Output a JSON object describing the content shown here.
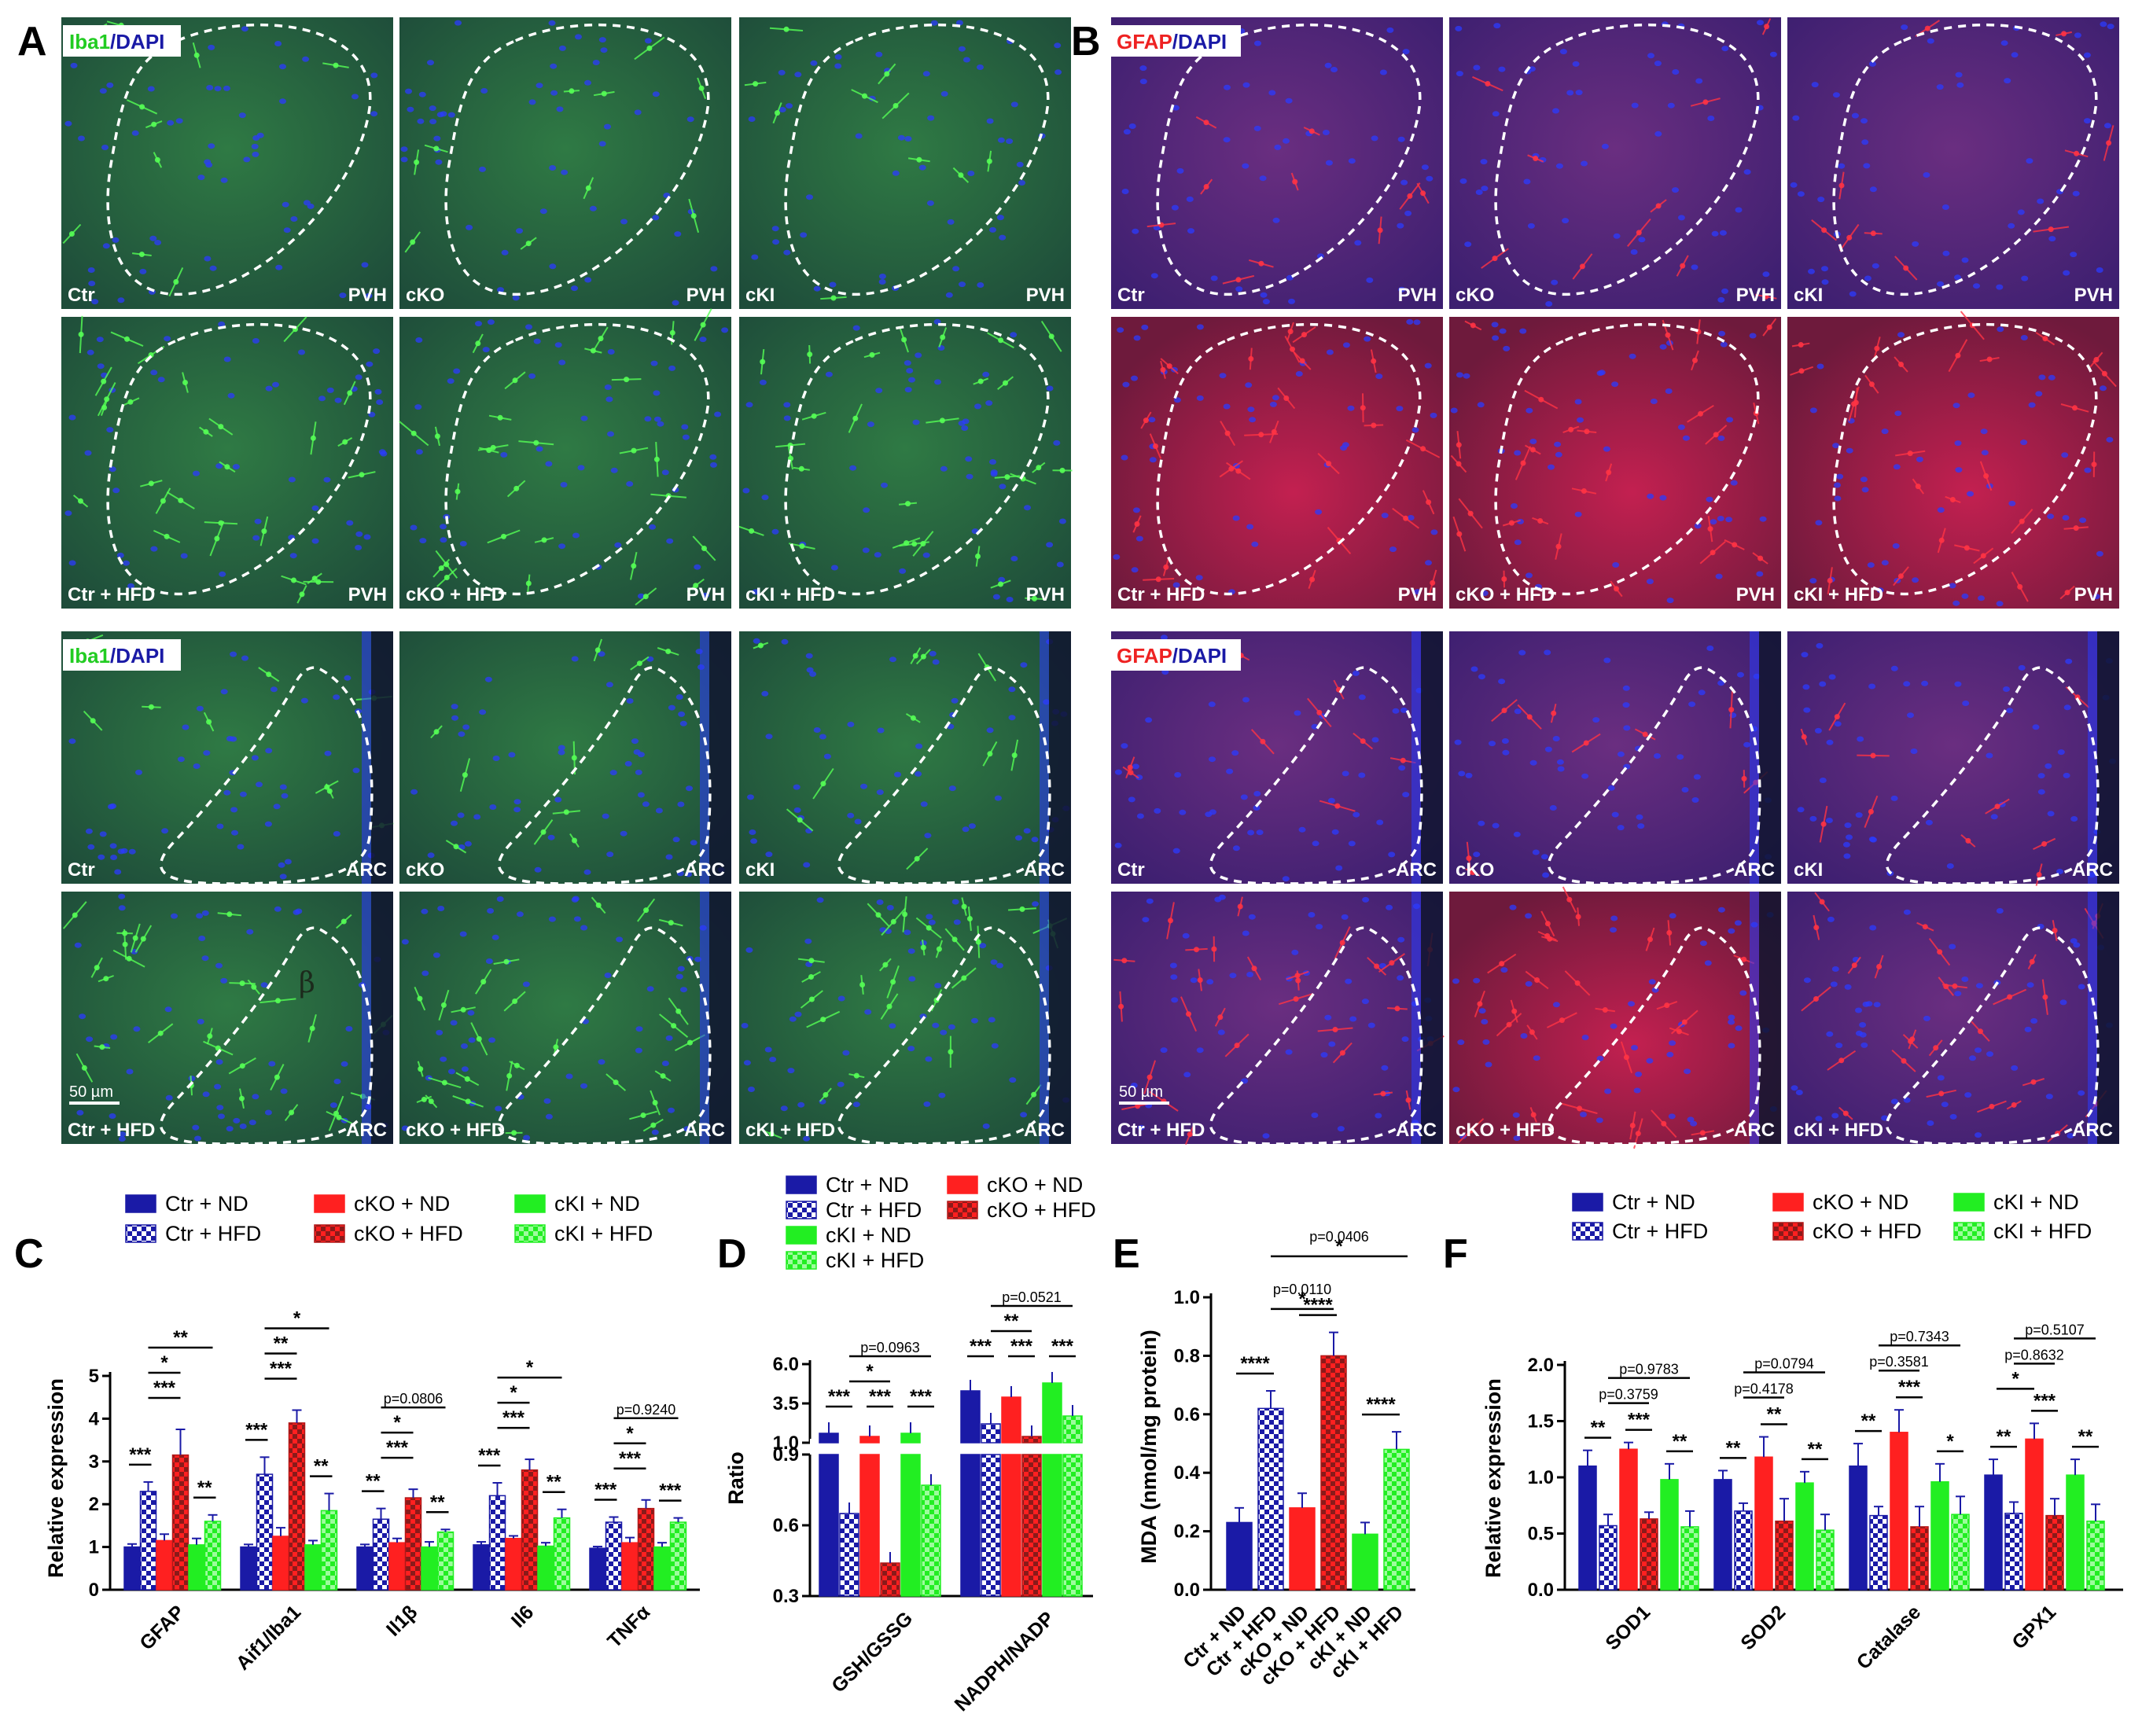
{
  "figure": {
    "panels": {
      "A": {
        "letter": "A",
        "stain_green": "Iba1",
        "stain_sep": "/",
        "stain_blue": "DAPI"
      },
      "B": {
        "letter": "B",
        "stain_red": "GFAP",
        "stain_sep": "/",
        "stain_blue": "DAPI"
      },
      "C": {
        "letter": "C"
      },
      "D": {
        "letter": "D"
      },
      "E": {
        "letter": "E"
      },
      "F": {
        "letter": "F"
      }
    },
    "groups": [
      "Ctr",
      "cKO",
      "cKI"
    ],
    "hfd_groups": [
      "Ctr + HFD",
      "cKO + HFD",
      "cKI + HFD"
    ],
    "regions": {
      "pvh": "PVH",
      "arc": "ARC"
    },
    "scale_bar": "50 µm",
    "arc_symbol": "β",
    "colors": {
      "ctr": "#1a1aa6",
      "cko": "#ff2020",
      "cki": "#22ee22",
      "iba1": "#33ff33",
      "gfap": "#ff2222",
      "dapi": "#2233ff",
      "green_tissue": "#2f6a3a",
      "red_tissue": "#5a2a6e"
    }
  },
  "chart_data": [
    {
      "id": "C",
      "type": "bar",
      "ylabel": "Relative expression",
      "ylim": [
        0,
        5
      ],
      "yticks": [
        "0",
        "1",
        "2",
        "3",
        "4",
        "5"
      ],
      "legend": [
        "Ctr + ND",
        "Ctr + HFD",
        "cKO + ND",
        "cKO + HFD",
        "cKI + ND",
        "cKI + HFD"
      ],
      "categories": [
        "GFAP",
        "Aif1/Iba1",
        "Il1β",
        "Il6",
        "TNFα"
      ],
      "series": [
        {
          "name": "Ctr + ND",
          "values": [
            1.0,
            1.0,
            1.0,
            1.05,
            0.97
          ],
          "errors": [
            0.07,
            0.06,
            0.06,
            0.07,
            0.04
          ]
        },
        {
          "name": "Ctr + HFD",
          "values": [
            2.3,
            2.7,
            1.65,
            2.2,
            1.58
          ],
          "errors": [
            0.22,
            0.4,
            0.25,
            0.3,
            0.12
          ]
        },
        {
          "name": "cKO + ND",
          "values": [
            1.15,
            1.25,
            1.1,
            1.2,
            1.1
          ],
          "errors": [
            0.15,
            0.2,
            0.1,
            0.06,
            0.12
          ]
        },
        {
          "name": "cKO + HFD",
          "values": [
            3.15,
            3.9,
            2.15,
            2.8,
            1.9
          ],
          "errors": [
            0.6,
            0.3,
            0.2,
            0.25,
            0.2
          ]
        },
        {
          "name": "cKI + ND",
          "values": [
            1.05,
            1.05,
            1.0,
            1.02,
            1.0
          ],
          "errors": [
            0.15,
            0.1,
            0.12,
            0.08,
            0.1
          ]
        },
        {
          "name": "cKI + HFD",
          "values": [
            1.6,
            1.85,
            1.35,
            1.68,
            1.58
          ],
          "errors": [
            0.15,
            0.4,
            0.06,
            0.2,
            0.1
          ]
        }
      ],
      "annotations": [
        {
          "category": "GFAP",
          "labels": [
            "***",
            "**",
            "**",
            "*",
            "***"
          ]
        },
        {
          "category": "Aif1/Iba1",
          "labels": [
            "***",
            "**",
            "*",
            "**",
            "***"
          ]
        },
        {
          "category": "Il1β",
          "labels": [
            "**",
            "**",
            "p=0.0806",
            "*",
            "***"
          ]
        },
        {
          "category": "Il6",
          "labels": [
            "***",
            "**",
            "*",
            "*",
            "***"
          ]
        },
        {
          "category": "TNFα",
          "labels": [
            "***",
            "***",
            "p=0.9240",
            "*",
            "***"
          ]
        }
      ]
    },
    {
      "id": "D",
      "type": "bar",
      "ylabel": "Ratio",
      "broken_axis": true,
      "upper_ylim": [
        1.0,
        6.0
      ],
      "lower_ylim": [
        0.3,
        0.9
      ],
      "yticks": [
        "6.0",
        "3.5",
        "1.0",
        "0.9",
        "0.6",
        "0.3"
      ],
      "legend": [
        "Ctr + ND",
        "Ctr + HFD",
        "cKI + ND",
        "cKI + HFD",
        "cKO + ND",
        "cKO + HFD"
      ],
      "categories": [
        "GSH/GSSG",
        "NADPH/NADP"
      ],
      "series": [
        {
          "name": "Ctr + ND",
          "values": [
            1.6,
            4.3
          ]
        },
        {
          "name": "Ctr + HFD",
          "values": [
            0.65,
            2.2
          ]
        },
        {
          "name": "cKO + ND",
          "values": [
            1.4,
            3.9
          ]
        },
        {
          "name": "cKO + HFD",
          "values": [
            0.44,
            1.4
          ]
        },
        {
          "name": "cKI + ND",
          "values": [
            1.6,
            4.8
          ]
        },
        {
          "name": "cKI + HFD",
          "values": [
            0.77,
            2.7
          ]
        }
      ],
      "annotations": [
        {
          "category": "GSH/GSSG",
          "labels": [
            "***",
            "***",
            "***",
            "*",
            "p=0.0963"
          ]
        },
        {
          "category": "NADPH/NADP",
          "labels": [
            "***",
            "***",
            "***",
            "**",
            "p=0.0521"
          ]
        }
      ]
    },
    {
      "id": "E",
      "type": "bar",
      "ylabel": "MDA (nmol/mg protein)",
      "ylim": [
        0,
        1.0
      ],
      "yticks": [
        "0.0",
        "0.2",
        "0.4",
        "0.6",
        "0.8",
        "1.0"
      ],
      "categories": [
        "Ctr + ND",
        "Ctr + HFD",
        "cKO + ND",
        "cKO + HFD",
        "cKI + ND",
        "cKI + HFD"
      ],
      "values": [
        0.23,
        0.62,
        0.28,
        0.8,
        0.19,
        0.48
      ],
      "errors": [
        0.05,
        0.06,
        0.05,
        0.08,
        0.04,
        0.06
      ],
      "annotations": [
        "****",
        "****",
        "****",
        "*",
        "p=0.0110",
        "*",
        "p=0.0406"
      ]
    },
    {
      "id": "F",
      "type": "bar",
      "ylabel": "Relative expression",
      "ylim": [
        0,
        2.0
      ],
      "yticks": [
        "0.0",
        "0.5",
        "1.0",
        "1.5",
        "2.0"
      ],
      "legend": [
        "Ctr + ND",
        "Ctr + HFD",
        "cKO + ND",
        "cKO + HFD",
        "cKI + ND",
        "cKI + HFD"
      ],
      "categories": [
        "SOD1",
        "SOD2",
        "Catalase",
        "GPX1"
      ],
      "series": [
        {
          "name": "Ctr + ND",
          "values": [
            1.1,
            0.98,
            1.1,
            1.02
          ],
          "errors": [
            0.14,
            0.08,
            0.2,
            0.14
          ]
        },
        {
          "name": "Ctr + HFD",
          "values": [
            0.57,
            0.7,
            0.66,
            0.68
          ],
          "errors": [
            0.1,
            0.07,
            0.08,
            0.1
          ]
        },
        {
          "name": "cKO + ND",
          "values": [
            1.25,
            1.18,
            1.4,
            1.34
          ],
          "errors": [
            0.06,
            0.18,
            0.2,
            0.14
          ]
        },
        {
          "name": "cKO + HFD",
          "values": [
            0.63,
            0.61,
            0.56,
            0.66
          ],
          "errors": [
            0.06,
            0.2,
            0.18,
            0.15
          ]
        },
        {
          "name": "cKI + ND",
          "values": [
            0.98,
            0.95,
            0.96,
            1.02
          ],
          "errors": [
            0.14,
            0.1,
            0.16,
            0.14
          ]
        },
        {
          "name": "cKI + HFD",
          "values": [
            0.56,
            0.53,
            0.67,
            0.61
          ],
          "errors": [
            0.14,
            0.14,
            0.16,
            0.15
          ]
        }
      ],
      "annotations": [
        {
          "category": "SOD1",
          "labels": [
            "**",
            "***",
            "**",
            "p=0.3759",
            "p=0.9783"
          ]
        },
        {
          "category": "SOD2",
          "labels": [
            "**",
            "**",
            "**",
            "p=0.4178",
            "p=0.0794"
          ]
        },
        {
          "category": "Catalase",
          "labels": [
            "**",
            "***",
            "*",
            "p=0.3581",
            "p=0.7343"
          ]
        },
        {
          "category": "GPX1",
          "labels": [
            "**",
            "***",
            "**",
            "*",
            "p=0.8632",
            "p=0.5107"
          ]
        }
      ]
    }
  ]
}
